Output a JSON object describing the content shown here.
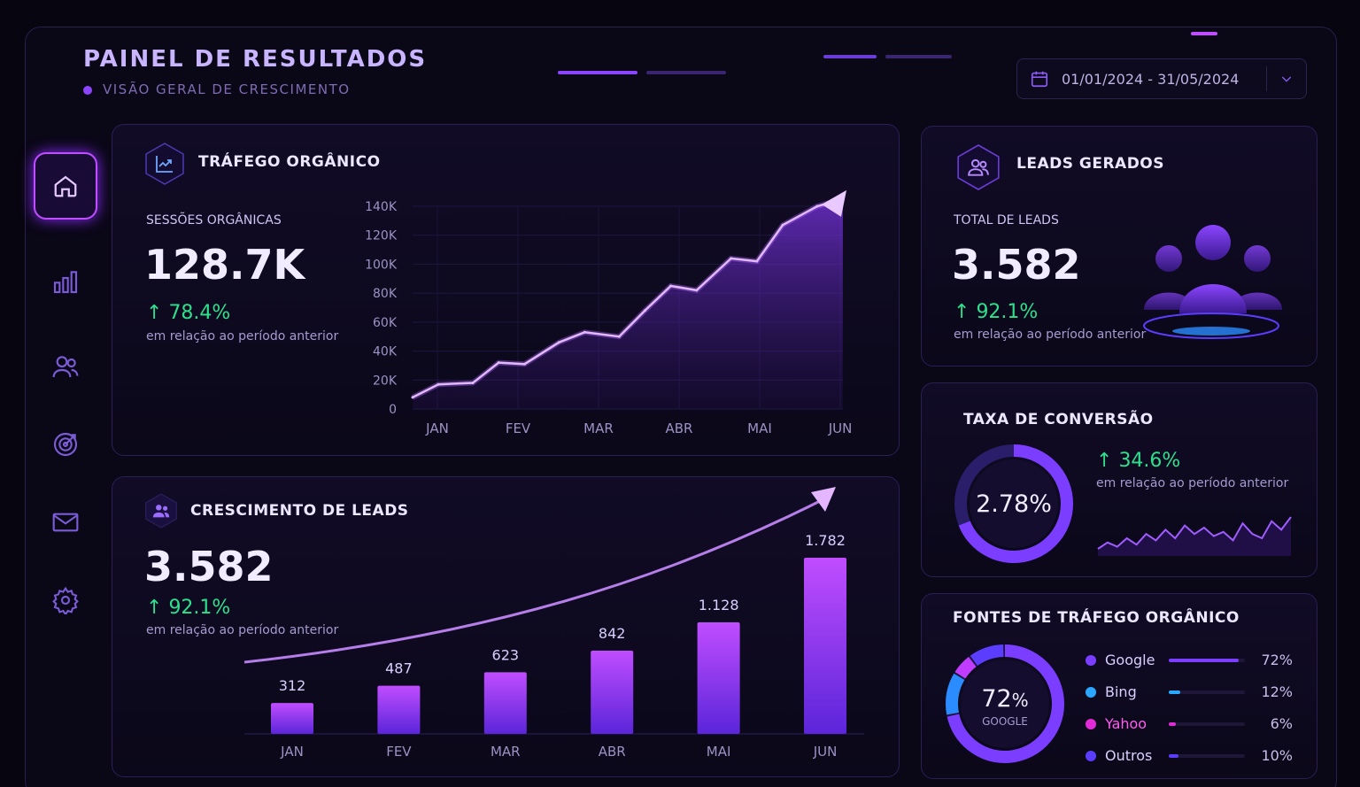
{
  "header": {
    "title": "PAINEL DE RESULTADOS",
    "subtitle": "VISÃO GERAL DE CRESCIMENTO",
    "date_range": "01/01/2024 - 31/05/2024"
  },
  "sidebar": {
    "items": [
      {
        "icon": "home-icon",
        "active": true
      },
      {
        "icon": "bar-chart-icon",
        "active": false
      },
      {
        "icon": "users-icon",
        "active": false
      },
      {
        "icon": "target-icon",
        "active": false
      },
      {
        "icon": "mail-icon",
        "active": false
      },
      {
        "icon": "settings-icon",
        "active": false
      }
    ]
  },
  "traffic": {
    "title": "TRÁFEGO ORGÂNICO",
    "label": "SESSÕES ORGÂNICAS",
    "value": "128.7K",
    "change": "78.4%",
    "note": "em relação ao período anterior"
  },
  "leads_growth": {
    "title": "CRESCIMENTO DE LEADS",
    "value": "3.582",
    "change": "92.1%",
    "note": "em relação ao período anterior"
  },
  "leads": {
    "title": "LEADS GERADOS",
    "label": "TOTAL DE LEADS",
    "value": "3.582",
    "change": "92.1%",
    "note": "em relação ao período anterior"
  },
  "conversion": {
    "title": "TAXA DE CONVERSÃO",
    "value": "2.78%",
    "change": "34.6%",
    "note": "em relação ao período anterior"
  },
  "sources": {
    "title": "FONTES DE TRÁFEGO ORGÂNICO",
    "center_value": "72",
    "center_unit": "%",
    "center_label": "GOOGLE",
    "items": [
      {
        "name": "Google",
        "value": "72%",
        "pct": 72,
        "color": "#7b3dff"
      },
      {
        "name": "Bing",
        "value": "12%",
        "pct": 12,
        "color": "#2aa8ff"
      },
      {
        "name": "Yahoo",
        "value": "6%",
        "pct": 6,
        "color": "#e02bd6"
      },
      {
        "name": "Outros",
        "value": "10%",
        "pct": 10,
        "color": "#5a3dff"
      }
    ]
  },
  "chart_data": [
    {
      "type": "area",
      "categories": [
        "JAN",
        "FEV",
        "MAR",
        "ABR",
        "MAI",
        "JUN"
      ],
      "x": [
        0.0,
        0.3,
        0.7,
        1.0,
        1.3,
        1.7,
        2.0,
        2.4,
        2.7,
        3.0,
        3.3,
        3.7,
        4.0,
        4.3,
        4.7,
        5.0
      ],
      "values": [
        8000,
        17000,
        18000,
        32000,
        31000,
        46000,
        53000,
        50000,
        68000,
        85000,
        82000,
        104000,
        102000,
        127000,
        140000,
        145000
      ],
      "yticks": [
        "0",
        "20K",
        "40K",
        "60K",
        "80K",
        "100K",
        "120K",
        "140K"
      ],
      "ylim": [
        0,
        140000
      ]
    },
    {
      "type": "bar",
      "categories": [
        "JAN",
        "FEV",
        "MAR",
        "ABR",
        "MAI",
        "JUN"
      ],
      "values": [
        312,
        487,
        623,
        842,
        1128,
        1782
      ],
      "labels": [
        "312",
        "487",
        "623",
        "842",
        "1.128",
        "1.782"
      ],
      "ylim": [
        0,
        1782
      ]
    },
    {
      "type": "line",
      "values": [
        5,
        8,
        6,
        10,
        7,
        12,
        9,
        14,
        10,
        16,
        12,
        15,
        11,
        13,
        9,
        17,
        12,
        10,
        18,
        14,
        20
      ]
    }
  ]
}
